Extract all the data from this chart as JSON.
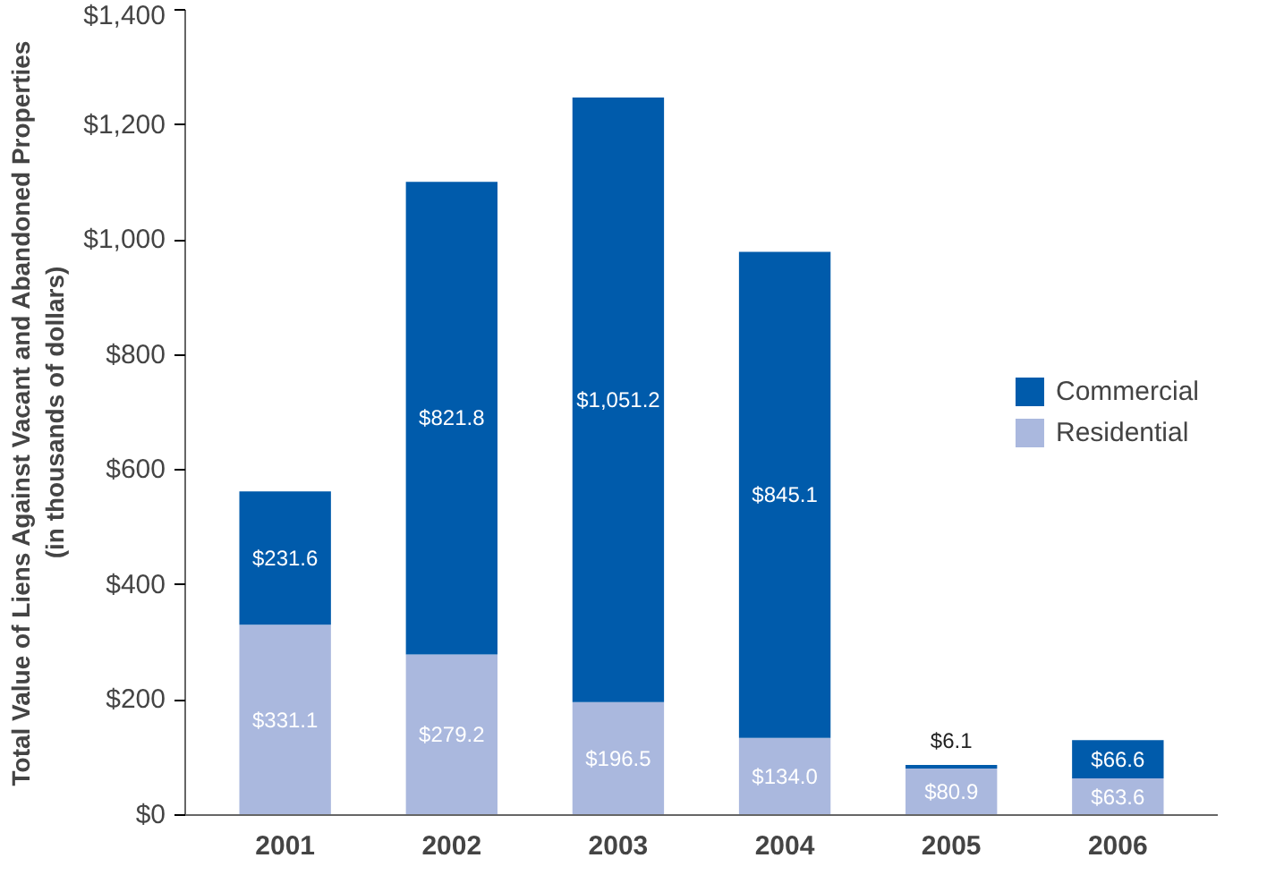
{
  "chart_data": {
    "type": "bar",
    "stacked": true,
    "ylabel": "Total Value of Liens Against Vacant and Abandoned Properties\n(in thousands of dollars)",
    "categories": [
      "2001",
      "2002",
      "2003",
      "2004",
      "2005",
      "2006"
    ],
    "series": [
      {
        "name": "Residential",
        "color": "#aab8de",
        "values": [
          331.1,
          279.2,
          196.5,
          134.0,
          80.9,
          63.6
        ],
        "value_labels": [
          "$331.1",
          "$279.2",
          "$196.5",
          "$134.0",
          "$80.9",
          "$63.6"
        ]
      },
      {
        "name": "Commercial",
        "color": "#005bab",
        "values": [
          231.6,
          821.8,
          1051.2,
          845.1,
          6.1,
          66.6
        ],
        "value_labels": [
          "$231.6",
          "$821.8",
          "$1,051.2",
          "$845.1",
          "$6.1",
          "$66.6"
        ]
      }
    ],
    "ylim": [
      0,
      1400
    ],
    "yticks": [
      {
        "value": 0,
        "label": "$0"
      },
      {
        "value": 200,
        "label": "$200"
      },
      {
        "value": 400,
        "label": "$400"
      },
      {
        "value": 600,
        "label": "$600"
      },
      {
        "value": 800,
        "label": "$800"
      },
      {
        "value": 1000,
        "label": "$1,000"
      },
      {
        "value": 1200,
        "label": "$1,200"
      },
      {
        "value": 1400,
        "label": "$1,400"
      }
    ],
    "grid": false,
    "legend": "right"
  }
}
